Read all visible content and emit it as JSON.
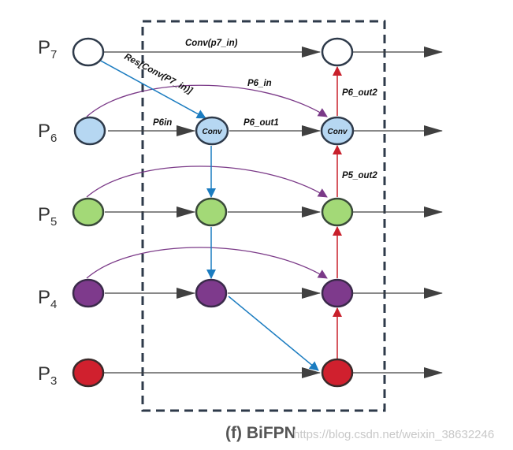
{
  "levels": [
    {
      "base": "P",
      "sub": "7"
    },
    {
      "base": "P",
      "sub": "6"
    },
    {
      "base": "P",
      "sub": "5"
    },
    {
      "base": "P",
      "sub": "4"
    },
    {
      "base": "P",
      "sub": "3"
    }
  ],
  "node_labels": {
    "p6_td": "Conv",
    "p6_out": "Conv"
  },
  "edge_labels": {
    "p7_conv": "Conv(p7_in)",
    "p7_resize": "Res[Conv(P7_in)]",
    "p6_in_skip": "P6_in",
    "p6_in": "P6in",
    "p6_out1": "P6_out1",
    "p6_out2": "P6_out2",
    "p5_out2": "P5_out2"
  },
  "caption": "(f) BiFPN",
  "watermark": "https://blog.csdn.net/weixin_38632246",
  "colors": {
    "p7": "#ffffff",
    "p6": "#b6d7f2",
    "p5": "#a3d977",
    "p4": "#7e3a8c",
    "p3": "#d0202e",
    "top_down_arrow": "#1b7cc0",
    "bottom_up_arrow": "#c8202b",
    "skip_arrow": "#7b3a88",
    "lateral_arrow": "#404040",
    "node_stroke": "#2e3a4a"
  }
}
